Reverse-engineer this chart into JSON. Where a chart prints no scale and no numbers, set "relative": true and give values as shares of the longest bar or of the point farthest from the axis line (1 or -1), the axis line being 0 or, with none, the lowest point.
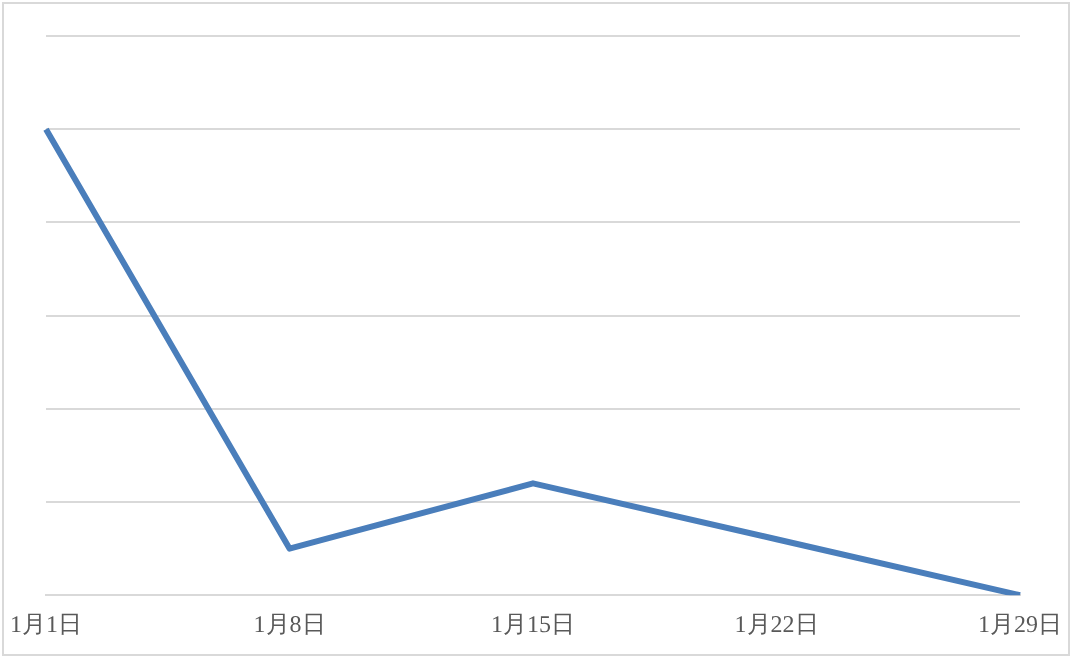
{
  "chart_data": {
    "type": "line",
    "categories": [
      "1月1日",
      "1月8日",
      "1月15日",
      "1月22日",
      "1月29日"
    ],
    "series": [
      {
        "color": "#4a7ebb",
        "values": [
          1,
          0.1,
          0.24,
          0.12,
          0
        ]
      }
    ],
    "relative": true,
    "grid": "y",
    "legend": false,
    "marker": "none",
    "line_style": "solid",
    "tick_labels": "x"
  }
}
